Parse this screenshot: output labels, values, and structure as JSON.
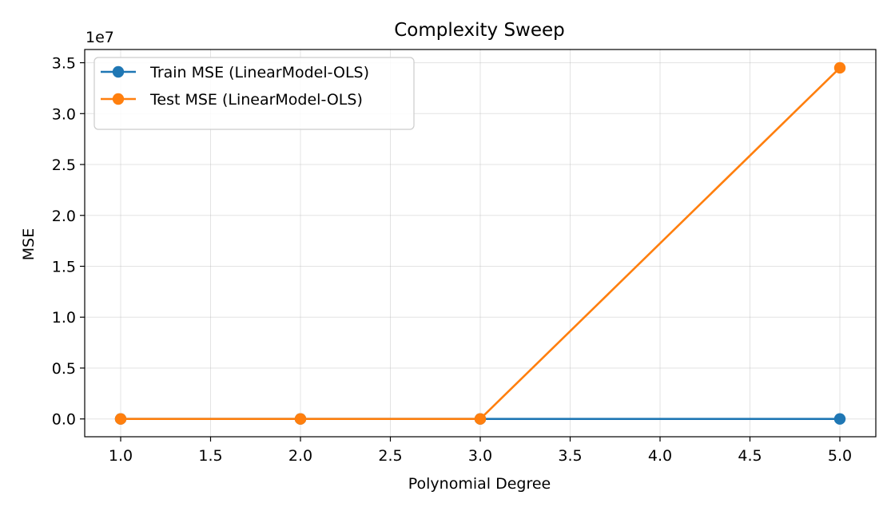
{
  "chart_data": {
    "type": "line",
    "title": "Complexity Sweep",
    "xlabel": "Polynomial Degree",
    "ylabel": "MSE",
    "y_offset_label": "1e7",
    "y_scale": 10000000,
    "x": [
      1,
      2,
      3,
      5
    ],
    "xlim": [
      0.8,
      5.2
    ],
    "ylim": [
      -1750000,
      36300000
    ],
    "x_ticks": [
      1.0,
      1.5,
      2.0,
      2.5,
      3.0,
      3.5,
      4.0,
      4.5,
      5.0
    ],
    "x_tick_labels": [
      "1.0",
      "1.5",
      "2.0",
      "2.5",
      "3.0",
      "3.5",
      "4.0",
      "4.5",
      "5.0"
    ],
    "y_ticks": [
      0,
      5000000,
      10000000,
      15000000,
      20000000,
      25000000,
      30000000,
      35000000
    ],
    "y_tick_labels": [
      "0.0",
      "0.5",
      "1.0",
      "1.5",
      "2.0",
      "2.5",
      "3.0",
      "3.5"
    ],
    "grid": true,
    "legend_position": "top-left",
    "series": [
      {
        "name": "Train MSE (LinearModel-OLS)",
        "color": "#1f77b4",
        "marker": "circle",
        "values": [
          0,
          0,
          0,
          0
        ]
      },
      {
        "name": "Test MSE (LinearModel-OLS)",
        "color": "#ff7f0e",
        "marker": "circle",
        "values": [
          0,
          0,
          0,
          34500000
        ]
      }
    ]
  }
}
